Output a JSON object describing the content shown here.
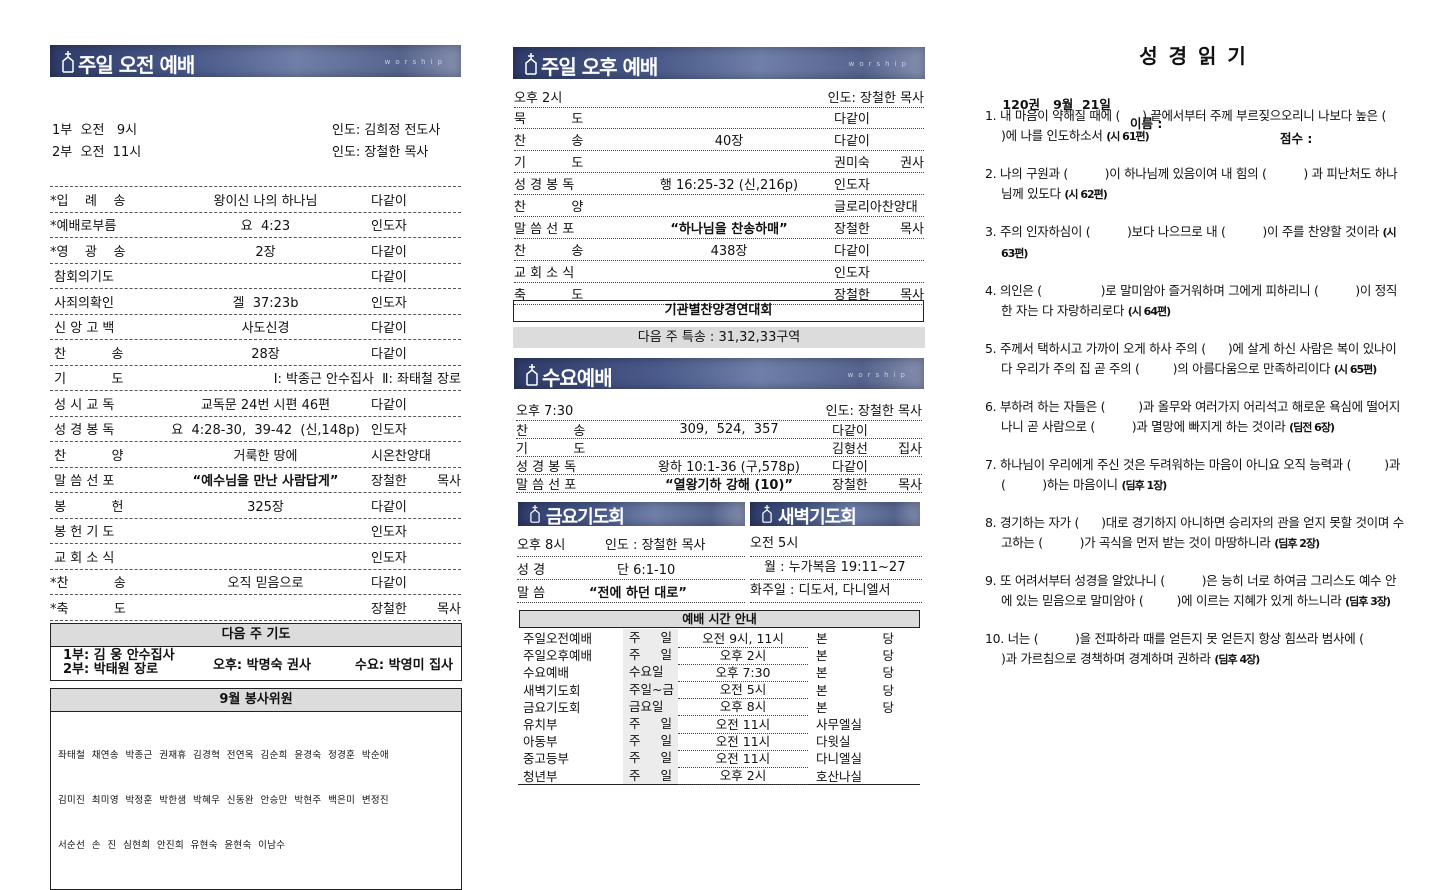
{
  "banner_watermark": "worship",
  "accent_color": "#3f4d7c",
  "morning": {
    "title": "주일 오전 예배",
    "services": [
      {
        "time": "1부  오전   9시",
        "leader": "인도: 김희정 전도사"
      },
      {
        "time": "2부  오전  11시",
        "leader": "인도: 장철한 목사"
      }
    ],
    "order": [
      {
        "item": "*입    례    송",
        "content": "왕이신 나의 하나님",
        "by": "다같이",
        "bold": false
      },
      {
        "item": "*예배로부름",
        "content": "요  4:23",
        "by": "인도자",
        "bold": false
      },
      {
        "item": "*영    광    송",
        "content": "2장",
        "by": "다같이",
        "bold": false
      },
      {
        "item": " 참회의기도",
        "content": "",
        "by": "다같이",
        "bold": false
      },
      {
        "item": " 사죄의확인",
        "content": "겔  37:23b",
        "by": "인도자",
        "bold": false
      },
      {
        "item": " 신 앙 고 백",
        "content": "사도신경",
        "by": "다같이",
        "bold": false
      },
      {
        "item": " 찬           송",
        "content": "28장",
        "by": "다같이",
        "bold": false
      },
      {
        "item": " 기           도",
        "content": "Ⅰ: 박종근 안수집사  Ⅱ: 좌태철 장로",
        "by": "",
        "bold": false
      },
      {
        "item": " 성 시 교 독",
        "content": "교독문 24번 시편 46편",
        "by": "다같이",
        "bold": false
      },
      {
        "item": " 성 경 봉 독",
        "content": "요  4:28-30,  39-42  (신,148p)",
        "by": "인도자",
        "bold": false
      },
      {
        "item": " 찬           양",
        "content": "거룩한 땅에",
        "by": "시온찬양대",
        "bold": false
      },
      {
        "item": " 말 씀 선 포",
        "content": "“예수님을 만난 사람답게”",
        "by": "장철한 목사",
        "bold": true
      },
      {
        "item": " 봉           헌",
        "content": "325장",
        "by": "다같이",
        "bold": false
      },
      {
        "item": " 봉 헌 기 도",
        "content": "",
        "by": "인도자",
        "bold": false
      },
      {
        "item": " 교 회 소 식",
        "content": "",
        "by": "인도자",
        "bold": false
      },
      {
        "item": "*찬           송",
        "content": "오직 믿음으로",
        "by": "다같이",
        "bold": false
      },
      {
        "item": "*축           도",
        "content": "",
        "by": "장철한 목사",
        "bold": false
      }
    ]
  },
  "next_prayer": {
    "title": "다음 주 기도",
    "first": "1부: 김  웅  안수집사",
    "second": "2부: 박태원  장로",
    "afternoon": "오후: 박명숙  권사",
    "wednesday": "수요: 박영미  집사"
  },
  "volunteers": {
    "title": "9월 봉사위원",
    "lines": [
      "좌태철  채연송  박종근  권재휴  김경혁  전연옥  김순희  윤경숙  정경훈  박순애",
      "김미진  최미영  박정훈  박한샘  박혜우  신동완  안승만  박현주  백은미  변정진",
      "서순선  손  진  심현희  안진희  유현숙  윤현숙  이남수"
    ]
  },
  "afternoon": {
    "title": "주일 오후 예배",
    "time": "오후 2시",
    "leader": "인도: 장철한 목사",
    "order": [
      {
        "item": "묵           도",
        "content": "",
        "by": "다같이",
        "bold": false
      },
      {
        "item": "찬           송",
        "content": "40장",
        "by": "다같이",
        "bold": false
      },
      {
        "item": "기           도",
        "content": "",
        "by": "권미숙 권사",
        "bold": false
      },
      {
        "item": "성 경 봉 독",
        "content": "행 16:25-32 (신,216p)",
        "by": "인도자",
        "bold": false
      },
      {
        "item": "찬           양",
        "content": "",
        "by": "글로리아찬양대",
        "bold": false
      },
      {
        "item": "말 씀 선 포",
        "content": "“하나님을 찬송하매”",
        "by": "장철한 목사",
        "bold": true
      },
      {
        "item": "찬           송",
        "content": "438장",
        "by": "다같이",
        "bold": false
      },
      {
        "item": "교 회 소 식",
        "content": "",
        "by": "인도자",
        "bold": false
      },
      {
        "item": "축           도",
        "content": "",
        "by": "장철한 목사",
        "bold": false
      }
    ],
    "event": "기관별찬양경연대회",
    "next_special": "다음 주 특송 : 31,32,33구역"
  },
  "wednesday": {
    "title": "수요예배",
    "time": "오후 7:30",
    "leader": "인도: 장철한 목사",
    "order": [
      {
        "item": "찬           송",
        "content": "309,  524,  357",
        "by": "다같이",
        "bold": false
      },
      {
        "item": "기           도",
        "content": "",
        "by": "김형선 집사",
        "bold": false
      },
      {
        "item": "성 경 봉 독",
        "content": "왕하 10:1-36 (구,578p)",
        "by": "다같이",
        "bold": false
      },
      {
        "item": "말 씀 선 포",
        "content": "“열왕기하 강해 (10)”",
        "by": "장철한 목사",
        "bold": true
      }
    ]
  },
  "friday": {
    "title": "금요기도회",
    "time": "오후 8시",
    "leader": "인도 : 장철한 목사",
    "scripture_label": "성 경",
    "scripture": "단 6:1-10",
    "sermon_label": "말 씀",
    "sermon": "“전에 하던 대로”"
  },
  "dawn": {
    "title": "새벽기도회",
    "time": "오전 5시",
    "monday": "월 : 누가복음 19:11~27",
    "rest": "화주일 : 디도서, 다니엘서"
  },
  "schedule": {
    "title": "예배 시간 안내",
    "rows": [
      [
        "주일오전예배",
        "주 일",
        "오전  9시,  11시",
        "본 당"
      ],
      [
        "주일오후예배",
        "주 일",
        "오후  2시",
        "본 당"
      ],
      [
        "수요예배",
        "수요일",
        "오후 7:30",
        "본 당"
      ],
      [
        "새벽기도회",
        "주일~금",
        "오전  5시",
        "본 당"
      ],
      [
        "금요기도회",
        "금요일",
        "오후  8시",
        "본 당"
      ],
      [
        "유치부",
        "주 일",
        "오전  11시",
        "사무엘실"
      ],
      [
        "아동부",
        "주 일",
        "오전  11시",
        "다윗실"
      ],
      [
        "중고등부",
        "주 일",
        "오전  11시",
        "다니엘실"
      ],
      [
        "청년부",
        "주 일",
        "오후  2시",
        "호산나실"
      ]
    ]
  },
  "bible_quiz": {
    "title": "성 경 읽 기",
    "issue": "120권   9월  21일",
    "name_label": "이름 :",
    "score_label": "점수 :",
    "questions": [
      {
        "text": "1. 내 마음이 약해질 때에 (      ) 끝에서부터 주께 부르짖으오리니 나보다 높은 (         )에 나를 인도하소서 ",
        "ref": "(시 61편)"
      },
      {
        "text": "2. 나의 구원과 (          )이 하나님께 있음이여 내 힘의 (          ) 과 피난처도 하나님께 있도다 ",
        "ref": "(시 62편)"
      },
      {
        "text": "3. 주의 인자하심이 (          )보다 나으므로 내 (          )이 주를 찬양할 것이라 ",
        "ref": "(시 63편)"
      },
      {
        "text": "4. 의인은 (                )로 말미암아 즐거워하며 그에게 피하리니 (          )이 정직한 자는 다 자랑하리로다 ",
        "ref": "(시 64편)"
      },
      {
        "text": "5. 주께서 택하시고 가까이 오게 하사 주의 (      )에 살게 하신 사람은 복이 있나이다 우리가 주의 집 곧 주의 (         )의 아름다움으로 만족하리이다 ",
        "ref": "(시 65편)"
      },
      {
        "text": "6. 부하려 하는 자들은 (         )과 올무와 여러가지 어리석고 해로운 욕심에 떨어지나니 곧 사람으로 (          )과 멸망에 빠지게 하는 것이라 ",
        "ref": "(딤전 6장)"
      },
      {
        "text": "7. 하나님이 우리에게 주신 것은 두려워하는 마음이 아니요 오직 능력과 (         )과 (          )하는 마음이니 ",
        "ref": "(딤후 1장)"
      },
      {
        "text": "8. 경기하는 자가 (      )대로 경기하지 아니하면 승리자의 관을 얻지 못할 것이며 수고하는 (          )가 곡식을 먼저 받는 것이 마땅하니라 ",
        "ref": "(딤후 2장)"
      },
      {
        "text": "9. 또 어려서부터 성경을 알았나니 (          )은 능히 너로 하여금 그리스도 예수 안에 있는 믿음으로 말미암아 (         )에 이르는 지혜가 있게 하느니라 ",
        "ref": "(딤후 3장)"
      },
      {
        "text": "10. 너는 (          )을 전파하라 때를 얻든지 못 얻든지 항상 힘쓰라 범사에 (                     )과 가르침으로 경책하며 경계하며 권하라 ",
        "ref": "(딤후 4장)"
      }
    ]
  }
}
